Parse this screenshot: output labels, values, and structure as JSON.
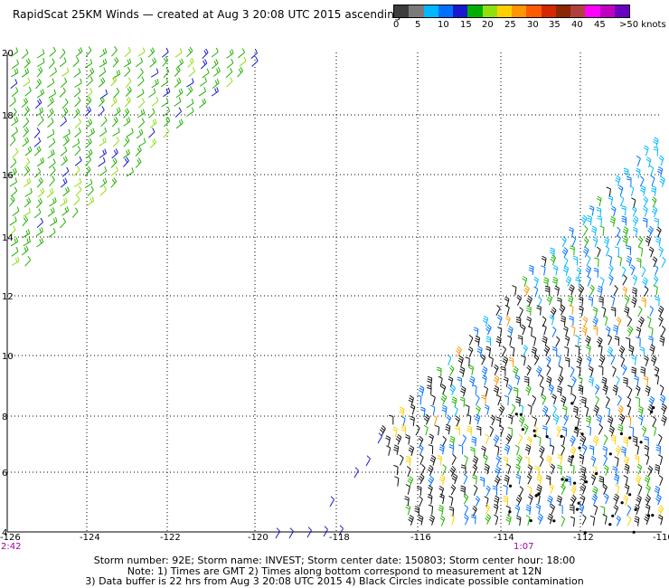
{
  "title": "RapidScat 25KM Winds — created at Aug  3 20:08 UTC 2015 ascending",
  "legend": {
    "colors": [
      "#3c3c3c",
      "#7a7a7a",
      "#00b8ff",
      "#0070ff",
      "#1818d0",
      "#00b000",
      "#90e010",
      "#ffd000",
      "#ff9600",
      "#ff5a00",
      "#d42800",
      "#8b2800",
      "#b04040",
      "#ff00ff",
      "#c000c0",
      "#6a00c0"
    ],
    "labels": [
      "0",
      "5",
      "10",
      "15",
      "20",
      "25",
      "30",
      "35",
      "40",
      "45",
      ">50 knots"
    ]
  },
  "map": {
    "x_ticks": [
      "-126",
      "-124",
      "-122",
      "-120",
      "-118",
      "-116",
      "-114",
      "-112",
      "-110"
    ],
    "y_ticks": [
      "20",
      "18",
      "16",
      "14",
      "12",
      "10",
      "8",
      "6",
      "4"
    ],
    "time_labels": [
      "2:42",
      "1:07"
    ],
    "grid": "dotted"
  },
  "footer": {
    "line1": "Storm number: 92E;  Storm name: INVEST;  Storm center date: 150803;  Storm center hour: 18:00",
    "line2": "Note: 1) Times are GMT  2) Times along bottom correspond to measurement at 12N",
    "line3": "3) Data buffer is 22 hrs from Aug  3 20:08 UTC 2015   4) Black Circles indicate possible contamination"
  }
}
